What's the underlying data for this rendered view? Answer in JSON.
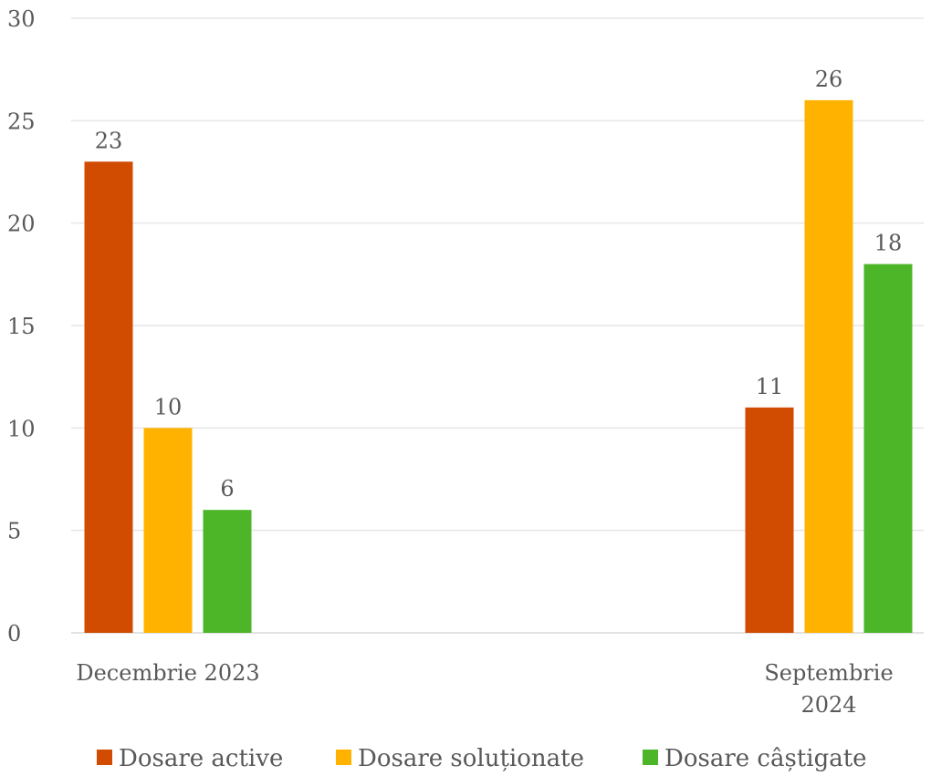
{
  "chart_data": {
    "type": "bar",
    "categories": [
      [
        "Decembrie 2023"
      ],
      [
        "Septembrie",
        "2024"
      ]
    ],
    "series": [
      {
        "name": "Dosare active",
        "color": "#D14B00",
        "values": [
          23,
          11
        ]
      },
      {
        "name": "Dosare soluționate",
        "color": "#FFB300",
        "values": [
          10,
          26
        ]
      },
      {
        "name": "Dosare câștigate",
        "color": "#4CB528",
        "values": [
          6,
          18
        ]
      }
    ],
    "yticks": [
      "0",
      "5",
      "10",
      "15",
      "20",
      "25",
      "30"
    ],
    "ylim": [
      0,
      30
    ],
    "grid": true,
    "legend": "bottom",
    "data_labels": true
  }
}
